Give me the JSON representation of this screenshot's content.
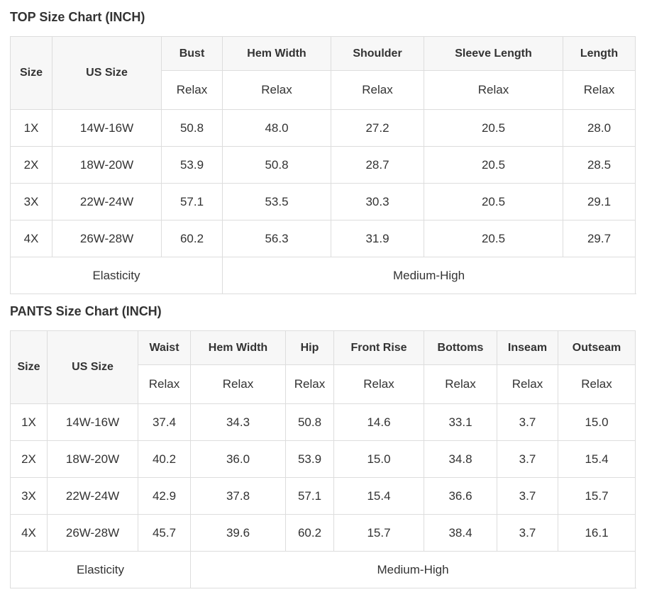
{
  "colors": {
    "dark_header_bg": "#464646",
    "dark_header_text": "#ffffff",
    "header_row_bg": "#f7f7f7",
    "border": "#dddddd",
    "text": "#333333"
  },
  "tables": [
    {
      "title": "TOP Size Chart (INCH)",
      "size_header": "Size",
      "us_size_header": "US Size",
      "measure_columns": [
        "Bust",
        "Hem Width",
        "Shoulder",
        "Sleeve Length",
        "Length"
      ],
      "fit_labels": [
        "Relax",
        "Relax",
        "Relax",
        "Relax",
        "Relax"
      ],
      "rows": [
        {
          "size": "1X",
          "us_size": "14W-16W",
          "values": [
            "50.8",
            "48.0",
            "27.2",
            "20.5",
            "28.0"
          ]
        },
        {
          "size": "2X",
          "us_size": "18W-20W",
          "values": [
            "53.9",
            "50.8",
            "28.7",
            "20.5",
            "28.5"
          ]
        },
        {
          "size": "3X",
          "us_size": "22W-24W",
          "values": [
            "57.1",
            "53.5",
            "30.3",
            "20.5",
            "29.1"
          ]
        },
        {
          "size": "4X",
          "us_size": "26W-28W",
          "values": [
            "60.2",
            "56.3",
            "31.9",
            "20.5",
            "29.7"
          ]
        }
      ],
      "footer": {
        "label": "Elasticity",
        "value": "Medium-High",
        "label_colspan": 3,
        "value_colspan": 5
      }
    },
    {
      "title": "PANTS Size Chart (INCH)",
      "size_header": "Size",
      "us_size_header": "US Size",
      "measure_columns": [
        "Waist",
        "Hem Width",
        "Hip",
        "Front Rise",
        "Bottoms",
        "Inseam",
        "Outseam"
      ],
      "fit_labels": [
        "Relax",
        "Relax",
        "Relax",
        "Relax",
        "Relax",
        "Relax",
        "Relax"
      ],
      "rows": [
        {
          "size": "1X",
          "us_size": "14W-16W",
          "values": [
            "37.4",
            "34.3",
            "50.8",
            "14.6",
            "33.1",
            "3.7",
            "15.0"
          ]
        },
        {
          "size": "2X",
          "us_size": "18W-20W",
          "values": [
            "40.2",
            "36.0",
            "53.9",
            "15.0",
            "34.8",
            "3.7",
            "15.4"
          ]
        },
        {
          "size": "3X",
          "us_size": "22W-24W",
          "values": [
            "42.9",
            "37.8",
            "57.1",
            "15.4",
            "36.6",
            "3.7",
            "15.7"
          ]
        },
        {
          "size": "4X",
          "us_size": "26W-28W",
          "values": [
            "45.7",
            "39.6",
            "60.2",
            "15.7",
            "38.4",
            "3.7",
            "16.1"
          ]
        }
      ],
      "footer": {
        "label": "Elasticity",
        "value": "Medium-High",
        "label_colspan": 3,
        "value_colspan": 7
      }
    }
  ]
}
